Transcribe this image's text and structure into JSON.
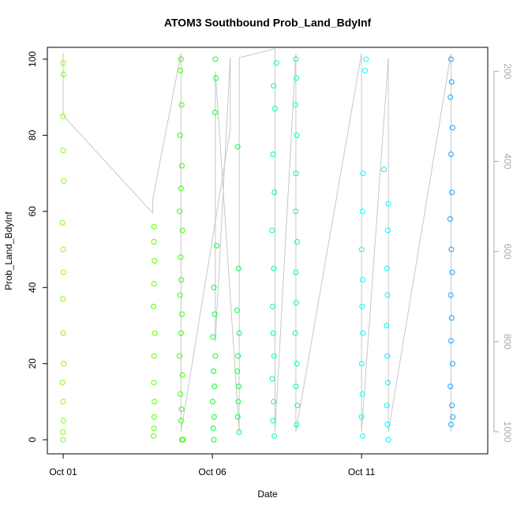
{
  "chart_data": {
    "type": "scatter",
    "title": "ATOM3 Southbound Prob_Land_BdyInf",
    "xlabel": "Date",
    "ylabel": "Prob_Land_BdyInf",
    "xlim": [
      0.47,
      15.23
    ],
    "xticks": [
      {
        "value": 1,
        "label": "Oct 01"
      },
      {
        "value": 6,
        "label": "Oct 06"
      },
      {
        "value": 11,
        "label": "Oct 11"
      }
    ],
    "ylim": [
      -3.7,
      103.1
    ],
    "yticks": [
      0,
      20,
      40,
      60,
      80,
      100
    ],
    "y2lim": [
      1049,
      147
    ],
    "y2ticks": [
      200,
      400,
      600,
      800,
      1000
    ],
    "y2color": "#aaaaaa",
    "series": [
      {
        "color": "#80ff00",
        "x": [
          1.0,
          1.01,
          0.99,
          1.0,
          1.02,
          0.98,
          1.0,
          1.01,
          0.99,
          1.0,
          1.02,
          0.98,
          1.0,
          1.01,
          0.99,
          1.0
        ],
        "values": [
          99,
          96,
          85,
          76,
          68,
          57,
          50,
          44,
          37,
          28,
          20,
          15,
          10,
          5,
          2,
          0
        ]
      },
      {
        "color": "#55ff00",
        "x": [
          4.05,
          4.04,
          4.06,
          4.05,
          4.03,
          4.07,
          4.05,
          4.04,
          4.06,
          4.05,
          4.04,
          4.03
        ],
        "values": [
          56,
          52,
          47,
          41,
          35,
          28,
          22,
          15,
          10,
          6,
          3,
          1
        ]
      },
      {
        "color": "#33ff00",
        "x": [
          4.95,
          4.93,
          4.97,
          4.92,
          4.98,
          4.95,
          4.9,
          5.0,
          4.94,
          4.96,
          4.92,
          4.98,
          4.95,
          4.9,
          5.0,
          4.93,
          4.97,
          4.95,
          4.98,
          5.02
        ],
        "values": [
          100,
          97,
          88,
          80,
          72,
          66,
          60,
          55,
          48,
          42,
          38,
          33,
          28,
          22,
          17,
          12,
          8,
          5,
          0,
          0
        ]
      },
      {
        "color": "#00ff33",
        "x": [
          6.1,
          6.12,
          6.09,
          6.15,
          6.05,
          6.08,
          6.02,
          6.1,
          6.04,
          6.07,
          6.01,
          6.06,
          6.03,
          6.05
        ],
        "values": [
          100,
          95,
          86,
          51,
          40,
          33,
          27,
          22,
          18,
          14,
          10,
          6,
          3,
          0
        ]
      },
      {
        "color": "#00ff4d",
        "x": [
          6.85,
          6.88,
          6.83,
          6.9,
          6.86,
          6.84,
          6.89,
          6.87,
          6.85,
          6.9
        ],
        "values": [
          77,
          45,
          34,
          28,
          22,
          18,
          14,
          10,
          6,
          2
        ]
      },
      {
        "color": "#00ff99",
        "x": [
          8.15,
          8.05,
          8.1,
          8.03,
          8.08,
          8.0,
          8.06,
          8.02,
          8.04,
          8.07,
          8.01,
          8.05,
          8.03,
          8.08
        ],
        "values": [
          99,
          93,
          87,
          75,
          65,
          55,
          45,
          35,
          28,
          22,
          16,
          10,
          5,
          1
        ]
      },
      {
        "color": "#00ffa6",
        "x": [
          8.8,
          8.82,
          8.78,
          8.83,
          8.8,
          8.79,
          8.84,
          8.8,
          8.81,
          8.78,
          8.83,
          8.8,
          8.85,
          8.82
        ],
        "values": [
          100,
          95,
          88,
          80,
          70,
          60,
          52,
          44,
          36,
          28,
          20,
          14,
          9,
          4
        ]
      },
      {
        "color": "#00ffff",
        "x": [
          11.15,
          11.12,
          11.05,
          11.03,
          11.0,
          11.04,
          11.02,
          11.05,
          11.01,
          11.03,
          11.0,
          11.04
        ],
        "values": [
          100,
          97,
          70,
          60,
          50,
          42,
          35,
          28,
          20,
          12,
          6,
          1
        ]
      },
      {
        "color": "#00f0ff",
        "x": [
          11.75,
          11.9,
          11.88,
          11.85,
          11.87,
          11.84,
          11.86,
          11.88,
          11.85,
          11.87,
          11.9
        ],
        "values": [
          71,
          62,
          55,
          45,
          38,
          30,
          22,
          15,
          9,
          4,
          0
        ]
      },
      {
        "color": "#1aa3ff",
        "x": [
          14.0,
          14.02,
          13.98,
          14.05,
          14.0,
          14.03,
          13.97,
          14.01,
          14.04,
          13.99,
          14.02,
          14.0,
          14.05,
          13.98,
          14.03,
          14.06,
          14.0
        ],
        "values": [
          100,
          94,
          90,
          82,
          75,
          65,
          58,
          50,
          44,
          38,
          32,
          26,
          20,
          14,
          9,
          6,
          4
        ]
      },
      {
        "type": "line",
        "axis": "y2",
        "color": "#c8c8c8",
        "x": [
          1.0,
          1.0,
          4.0,
          4.0,
          4.95,
          4.95,
          6.6,
          6.6,
          6.1,
          6.1,
          6.9,
          6.9,
          8.1,
          8.1,
          8.8,
          8.8,
          11.0,
          11.0,
          11.9,
          11.9,
          14.0,
          14.0
        ],
        "values": [
          160,
          298,
          515,
          485,
          160,
          1000,
          330,
          170,
          800,
          200,
          1000,
          170,
          150,
          1000,
          160,
          1000,
          160,
          1000,
          170,
          1000,
          160,
          1000
        ]
      }
    ]
  }
}
